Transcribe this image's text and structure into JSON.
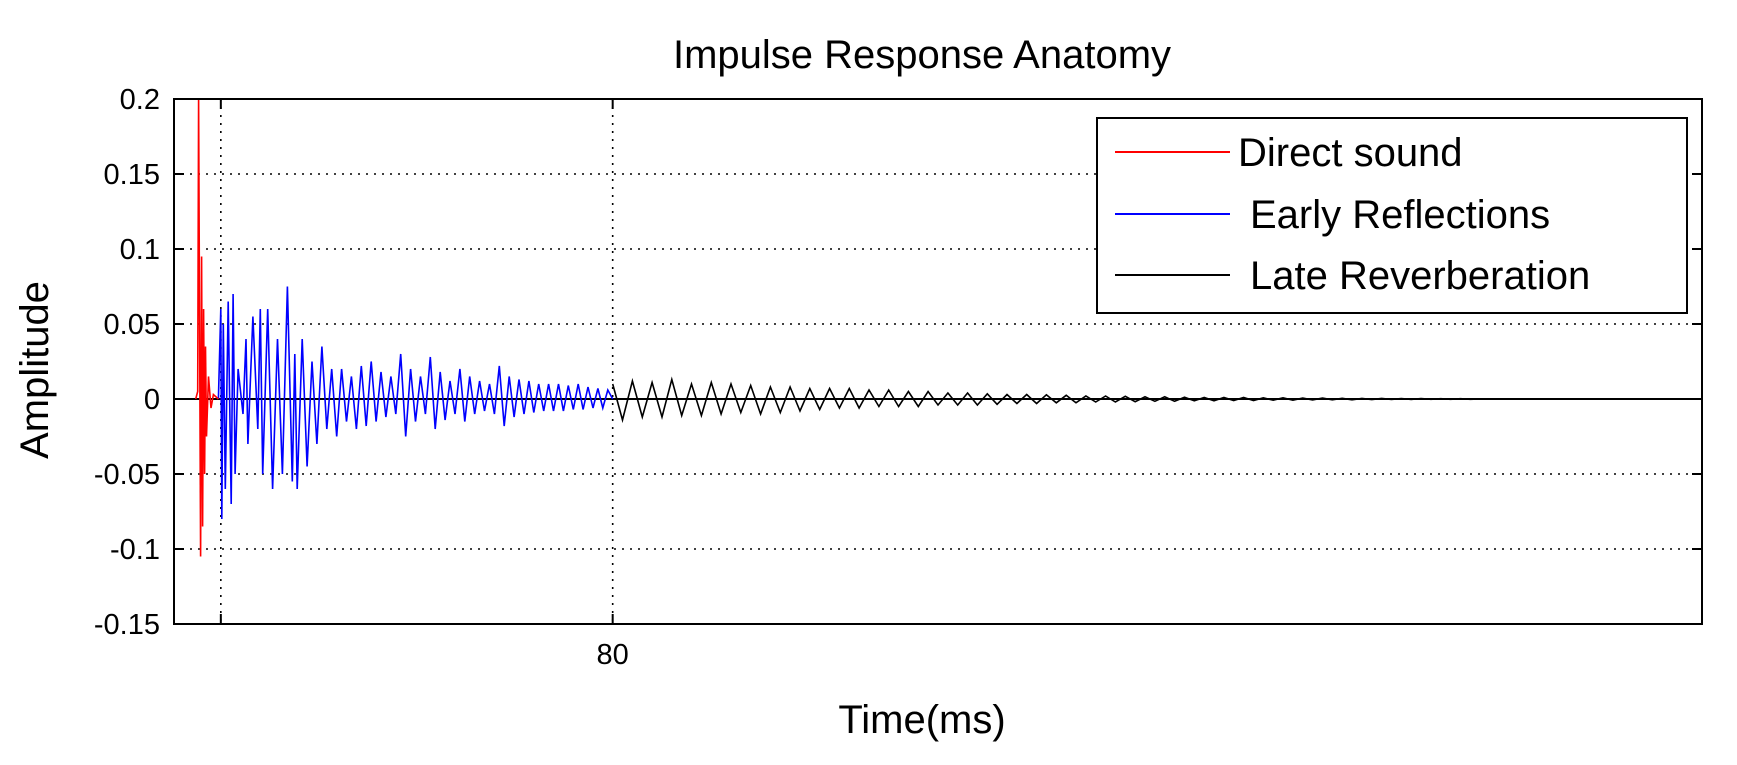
{
  "chart_data": {
    "type": "line",
    "title": "Impulse Response Anatomy",
    "xlabel": "Time(ms)",
    "ylabel": "Amplitude",
    "xlim": [
      -9,
      301
    ],
    "ylim": [
      -0.15,
      0.2
    ],
    "yticks": [
      -0.15,
      -0.1,
      -0.05,
      0,
      0.05,
      0.1,
      0.15,
      0.2
    ],
    "ytick_labels": [
      "-0.15",
      "-0.1",
      "-0.05",
      "0",
      "0.05",
      "0.1",
      "0.15",
      "0.2"
    ],
    "xticks": [
      0.5,
      80
    ],
    "xtick_labels": [
      "",
      "80"
    ],
    "grid": "dotted",
    "legend_position": "top-right",
    "series": [
      {
        "name": "Direct sound",
        "color": "#ff0000",
        "x": [
          -4.6,
          -4.2,
          -4.0,
          -3.6,
          -3.4,
          -3.2,
          -3.0,
          -2.8,
          -2.6,
          -2.4,
          -2.0,
          -1.5,
          -1.0,
          0.0
        ],
        "y": [
          0,
          0.005,
          0.2,
          -0.105,
          0.095,
          -0.085,
          0.06,
          -0.05,
          0.035,
          -0.025,
          0.015,
          -0.006,
          0.003,
          0
        ]
      },
      {
        "name": "Early Reflections",
        "color": "#0000ff",
        "x": [
          0.0,
          0.5,
          0.7,
          1.0,
          1.4,
          2.0,
          2.6,
          3.0,
          3.4,
          4.0,
          5.0,
          5.6,
          6.0,
          7.0,
          8.0,
          8.5,
          9.0,
          10.0,
          11.0,
          12.0,
          13.0,
          14.0,
          15.0,
          15.5,
          16.0,
          17.0,
          18.0,
          19.0,
          20.0,
          21.0,
          22.0,
          23.0,
          24.0,
          25.0,
          26.0,
          27.0,
          28.0,
          29.0,
          30.0,
          31.0,
          32.0,
          33.0,
          34.0,
          35.0,
          36.0,
          37.0,
          38.0,
          39.0,
          40.0,
          41.0,
          42.0,
          43.0,
          44.0,
          45.0,
          46.0,
          47.0,
          48.0,
          49.0,
          50.0,
          51.0,
          52.0,
          53.0,
          54.0,
          55.0,
          56.0,
          57.0,
          58.0,
          59.0,
          60.0,
          61.0,
          62.0,
          63.0,
          64.0,
          65.0,
          66.0,
          67.0,
          68.0,
          69.0,
          70.0,
          71.0,
          72.0,
          73.0,
          74.0,
          75.0,
          76.0,
          77.0,
          78.0,
          79.0,
          80.0
        ],
        "y": [
          0,
          0.06,
          -0.08,
          0.05,
          -0.06,
          0.065,
          -0.07,
          0.07,
          -0.05,
          0.02,
          -0.01,
          0.04,
          -0.03,
          0.055,
          -0.02,
          0.06,
          -0.05,
          0.06,
          -0.06,
          0.04,
          -0.05,
          0.075,
          -0.055,
          0.03,
          -0.06,
          0.04,
          -0.045,
          0.025,
          -0.03,
          0.035,
          -0.02,
          0.02,
          -0.025,
          0.02,
          -0.015,
          0.015,
          -0.02,
          0.022,
          -0.018,
          0.025,
          -0.015,
          0.018,
          -0.012,
          0.015,
          -0.01,
          0.03,
          -0.025,
          0.02,
          -0.015,
          0.015,
          -0.01,
          0.028,
          -0.02,
          0.018,
          -0.014,
          0.012,
          -0.01,
          0.02,
          -0.015,
          0.015,
          -0.01,
          0.012,
          -0.008,
          0.01,
          -0.01,
          0.022,
          -0.018,
          0.015,
          -0.012,
          0.013,
          -0.01,
          0.012,
          -0.009,
          0.01,
          -0.008,
          0.01,
          -0.008,
          0.01,
          -0.008,
          0.009,
          -0.007,
          0.01,
          -0.007,
          0.008,
          -0.006,
          0.007,
          -0.006,
          0.006,
          0
        ]
      },
      {
        "name": "Late Reverberation",
        "color": "#000000",
        "x": [
          80,
          82,
          84,
          86,
          88,
          90,
          92,
          94,
          96,
          98,
          100,
          102,
          104,
          106,
          108,
          110,
          112,
          114,
          116,
          118,
          120,
          122,
          124,
          126,
          128,
          130,
          132,
          134,
          136,
          138,
          140,
          142,
          144,
          146,
          148,
          150,
          152,
          154,
          156,
          158,
          160,
          162,
          164,
          166,
          168,
          170,
          172,
          174,
          176,
          178,
          180,
          182,
          184,
          186,
          188,
          190,
          192,
          194,
          196,
          198,
          200,
          202,
          204,
          206,
          208,
          210,
          212,
          214,
          216,
          218,
          220,
          222,
          224,
          226,
          228,
          230,
          232,
          234,
          236,
          238,
          240,
          242,
          244,
          246,
          248,
          250,
          252,
          254,
          256,
          258,
          260,
          262,
          264,
          266,
          268,
          270,
          272,
          274,
          276,
          278,
          280,
          282,
          284,
          286,
          288,
          290,
          292,
          294,
          296,
          298,
          300
        ],
        "y": [
          0.01,
          -0.014,
          0.012,
          -0.012,
          0.011,
          -0.012,
          0.013,
          -0.011,
          0.01,
          -0.011,
          0.011,
          -0.01,
          0.01,
          -0.009,
          0.009,
          -0.01,
          0.008,
          -0.009,
          0.008,
          -0.008,
          0.007,
          -0.007,
          0.007,
          -0.006,
          0.007,
          -0.006,
          0.006,
          -0.005,
          0.006,
          -0.005,
          0.005,
          -0.005,
          0.005,
          -0.004,
          0.004,
          -0.004,
          0.004,
          -0.004,
          0.0035,
          -0.0035,
          0.003,
          -0.003,
          0.003,
          -0.003,
          0.0028,
          -0.0025,
          0.0025,
          -0.0025,
          0.002,
          -0.002,
          0.002,
          -0.002,
          0.0018,
          -0.0018,
          0.0015,
          -0.0015,
          0.0015,
          -0.0015,
          0.0012,
          -0.0012,
          0.001,
          -0.0012,
          0.001,
          -0.001,
          0.001,
          -0.001,
          0.0008,
          -0.0008,
          0.0008,
          -0.0008,
          0.0006,
          -0.0006,
          0.0006,
          -0.0005,
          0.0005,
          -0.0005,
          0.0004,
          -0.0004,
          0.0004,
          -0.0003,
          0.0003,
          -0.0003,
          0.0003,
          -0.0002,
          0.0002,
          -0.0002,
          0.0002,
          -0.0002,
          0.0001,
          -0.0001,
          0.0001,
          0.0,
          0.0,
          0.0,
          0.0,
          0.0,
          0.0,
          0.0,
          0.0,
          0.0,
          0.0,
          0.0,
          0.0,
          0.0,
          0.0,
          0.0,
          0.0,
          0.0,
          0.0,
          0.0,
          0.0
        ]
      }
    ]
  }
}
